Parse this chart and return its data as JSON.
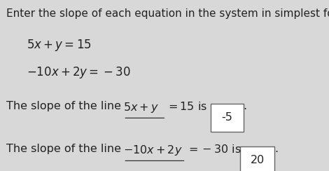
{
  "background_color": "#d8d8d8",
  "title_text": "Enter the slope of each equation in the system in simplest form.",
  "slope1": "-5",
  "slope2": "20",
  "slope_box_color": "#ffffff",
  "text_color": "#222222",
  "font_size_title": 11,
  "font_size_eq": 12,
  "font_size_body": 11.5
}
